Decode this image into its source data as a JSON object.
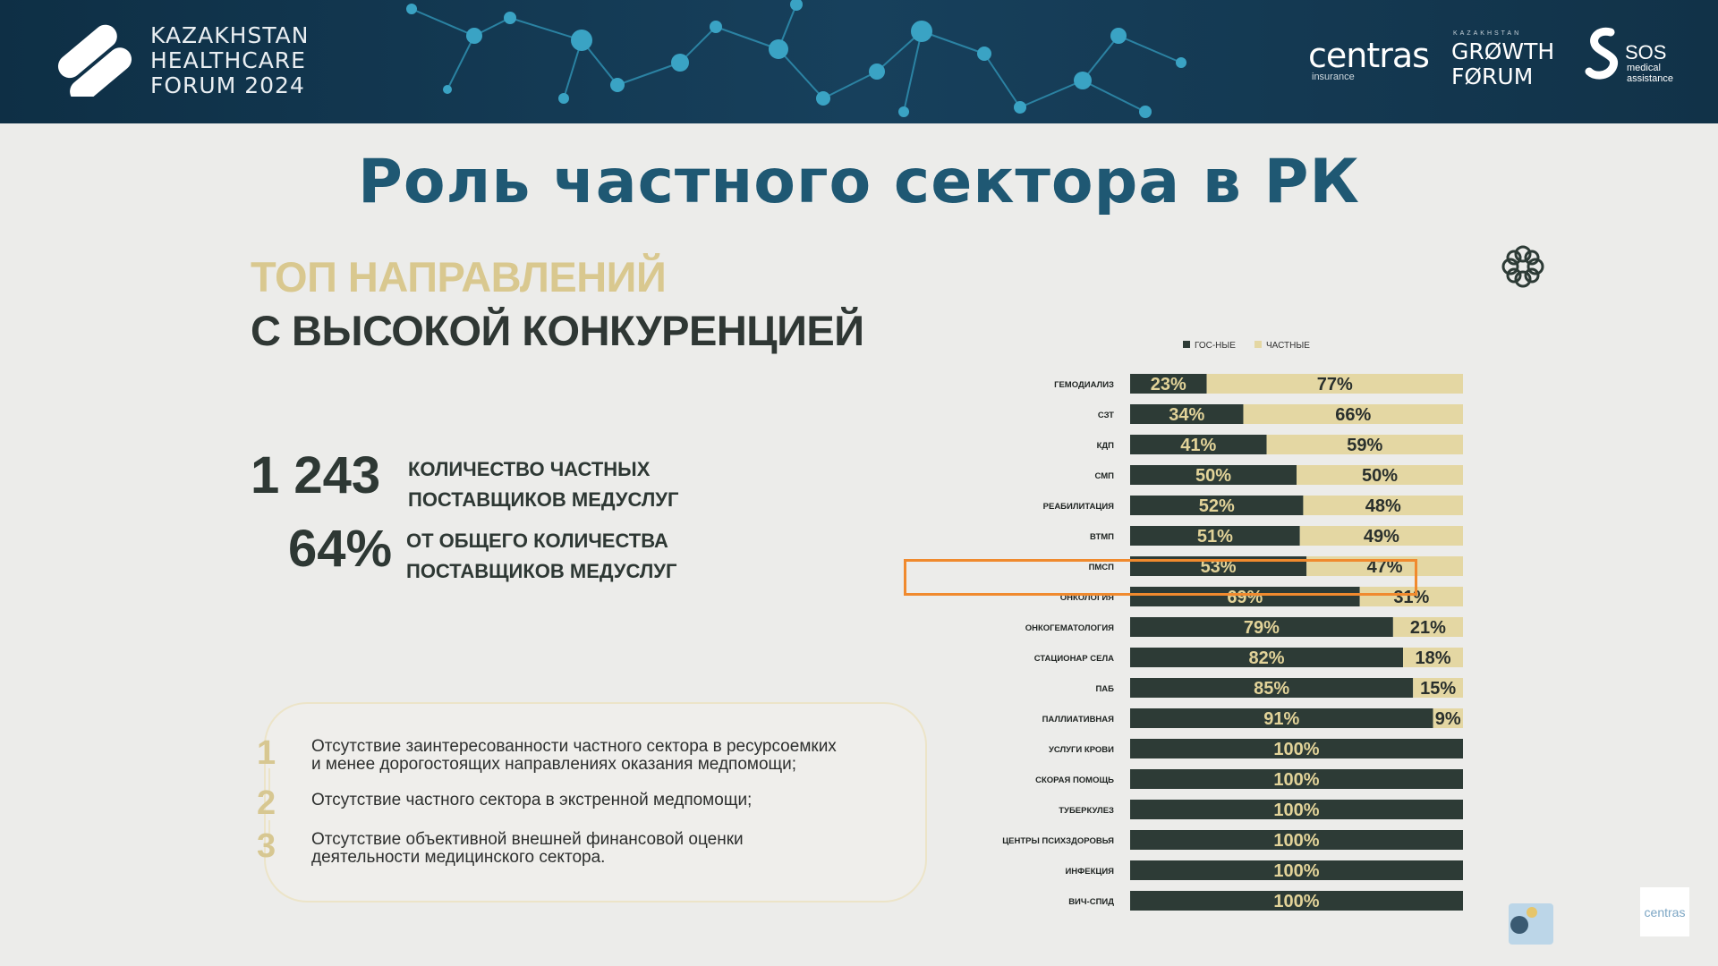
{
  "banner": {
    "forum_lines": [
      "KAZAKHSTAN",
      "HEALTHCARE",
      "FORUM 2024"
    ],
    "partners": {
      "centras": "centras",
      "centras_sub": "insurance",
      "growth_top": "KAZAKHSTAN",
      "growth_line1": "GRØWTH",
      "growth_line2": "FØRUM",
      "sos": "SOS",
      "sos_sub1": "medical",
      "sos_sub2": "assistance"
    }
  },
  "slide": {
    "title": "Роль частного сектора в РК",
    "heading1": "ТОП НАПРАВЛЕНИЙ",
    "heading2": "С ВЫСОКОЙ КОНКУРЕНЦИЕЙ",
    "stats": [
      {
        "value": "1 243",
        "label1": "КОЛИЧЕСТВО ЧАСТНЫХ",
        "label2": "ПОСТАВЩИКОВ МЕДУСЛУГ"
      },
      {
        "value": "64%",
        "label1": "ОТ ОБЩЕГО КОЛИЧЕСТВА",
        "label2": "ПОСТАВЩИКОВ МЕДУСЛУГ"
      }
    ],
    "notes": [
      {
        "num": "1",
        "line1": "Отсутствие заинтересованности частного сектора в ресурсоемких",
        "line2": "и менее дорогостоящих направлениях оказания медпомощи;"
      },
      {
        "num": "2",
        "line1": "Отсутствие частного сектора в экстренной медпомощи;",
        "line2": ""
      },
      {
        "num": "3",
        "line1": "Отсутствие объективной внешней финансовой оценки",
        "line2": "деятельности медицинского сектора."
      }
    ],
    "corner_logo": "centras"
  },
  "chart_data": {
    "type": "bar",
    "orientation": "horizontal",
    "stacked": true,
    "percent": true,
    "legend_position": "top",
    "categories": [
      "ГЕМОДИАЛИЗ",
      "СЗТ",
      "КДП",
      "СМП",
      "РЕАБИЛИТАЦИЯ",
      "ВТМП",
      "ПМСП",
      "ОНКОЛОГИЯ",
      "ОНКОГЕМАТОЛОГИЯ",
      "СТАЦИОНАР СЕЛА",
      "ПАБ",
      "ПАЛЛИАТИВНАЯ",
      "УСЛУГИ КРОВИ",
      "СКОРАЯ ПОМОЩЬ",
      "ТУБЕРКУЛЕЗ",
      "ЦЕНТРЫ ПСИХЗДОРОВЬЯ",
      "ИНФЕКЦИЯ",
      "ВИЧ-СПИД"
    ],
    "series": [
      {
        "name": "ГОС-НЫЕ",
        "color": "#2d3b36",
        "label_color": "#e2d399",
        "values": [
          23,
          34,
          41,
          50,
          52,
          51,
          53,
          69,
          79,
          82,
          85,
          91,
          100,
          100,
          100,
          100,
          100,
          100
        ]
      },
      {
        "name": "ЧАСТНЫЕ",
        "color": "#e4d7a3",
        "label_color": "#2a302d",
        "values": [
          77,
          66,
          59,
          50,
          48,
          49,
          47,
          31,
          21,
          18,
          15,
          9,
          0,
          0,
          0,
          0,
          0,
          0
        ]
      }
    ],
    "xlim": [
      0,
      100
    ],
    "highlighted_category": "ОНКОЛОГИЯ"
  }
}
